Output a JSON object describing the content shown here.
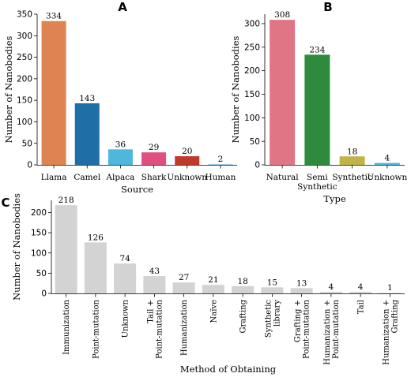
{
  "chart_data": [
    {
      "panel": "A",
      "type": "bar",
      "xlabel": "Source",
      "ylabel": "Number of Nanobodies",
      "ylim": [
        0,
        350
      ],
      "yticks": [
        0,
        50,
        100,
        150,
        200,
        250,
        300,
        350
      ],
      "categories": [
        "Llama",
        "Camel",
        "Alpaca",
        "Shark",
        "Unknown",
        "Human"
      ],
      "values": [
        334,
        143,
        36,
        29,
        20,
        2
      ],
      "colors": [
        "#dd8452",
        "#1f6fa6",
        "#4fb6dc",
        "#e04f7e",
        "#c0392b",
        "#9ed0ea"
      ],
      "grid": false
    },
    {
      "panel": "B",
      "type": "bar",
      "xlabel": "Type",
      "ylabel": "Number of Nanobodies",
      "ylim": [
        0,
        320
      ],
      "yticks": [
        0,
        50,
        100,
        150,
        200,
        250,
        300
      ],
      "categories": [
        "Natural",
        "Semi\nSynthetic",
        "Synthetic",
        "Unknown"
      ],
      "values": [
        308,
        234,
        18,
        4
      ],
      "colors": [
        "#e07585",
        "#2e8b3e",
        "#c2b24a",
        "#4fb6dc"
      ],
      "grid": false
    },
    {
      "panel": "C",
      "type": "bar",
      "xlabel": "Method of Obtaining",
      "ylabel": "Number of Nanobodies",
      "ylim": [
        0,
        230
      ],
      "yticks": [
        0,
        50,
        100,
        150,
        200
      ],
      "categories": [
        "Immunization",
        "Point-mutation",
        "Unknown",
        "Tail +\nPoint-mutation",
        "Humanization",
        "Naïve",
        "Grafting",
        "Synthetic\nlibrary",
        "Grafting +\nPoint-mutation",
        "Humanization +\nPoint-mutation",
        "Tail",
        "Humanization +\nGrafting"
      ],
      "values": [
        218,
        126,
        74,
        43,
        27,
        21,
        18,
        15,
        13,
        4,
        4,
        1
      ],
      "colors": [
        "#d3d3d3"
      ],
      "grid": false
    }
  ]
}
